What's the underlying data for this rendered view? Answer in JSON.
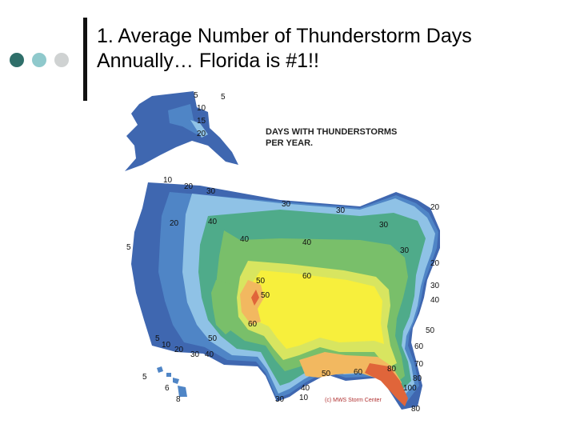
{
  "slide": {
    "title_line1": "1.  Average Number of Thunderstorm Days",
    "title_line2": "Annually… Florida is #1!!"
  },
  "map": {
    "caption_line1": "DAYS WITH THUNDERSTORMS",
    "caption_line2": "PER YEAR.",
    "credit": "(c) MWS Storm Center",
    "contour_labels": [
      "5",
      "10",
      "15",
      "20",
      "5",
      "10",
      "20",
      "30",
      "20",
      "40",
      "30",
      "30",
      "30",
      "20",
      "40",
      "40",
      "30",
      "5",
      "50",
      "50",
      "60",
      "60",
      "30",
      "20",
      "40",
      "50",
      "5",
      "10",
      "20",
      "30",
      "40",
      "50",
      "60",
      "70",
      "80",
      "50",
      "40",
      "30",
      "60",
      "80",
      "100",
      "80",
      "10",
      "5",
      "6",
      "8"
    ]
  },
  "colors": {
    "band_5": "#3f67b0",
    "band_10": "#4f85c6",
    "band_20": "#8fc2e6",
    "band_30": "#4fab8a",
    "band_40": "#79bf6a",
    "band_50": "#d8e560",
    "band_60": "#f7ef3c",
    "band_70": "#f2b860",
    "band_80": "#e0653a"
  },
  "icons": [
    "dot-dark-teal",
    "dot-light-teal",
    "dot-gray"
  ]
}
